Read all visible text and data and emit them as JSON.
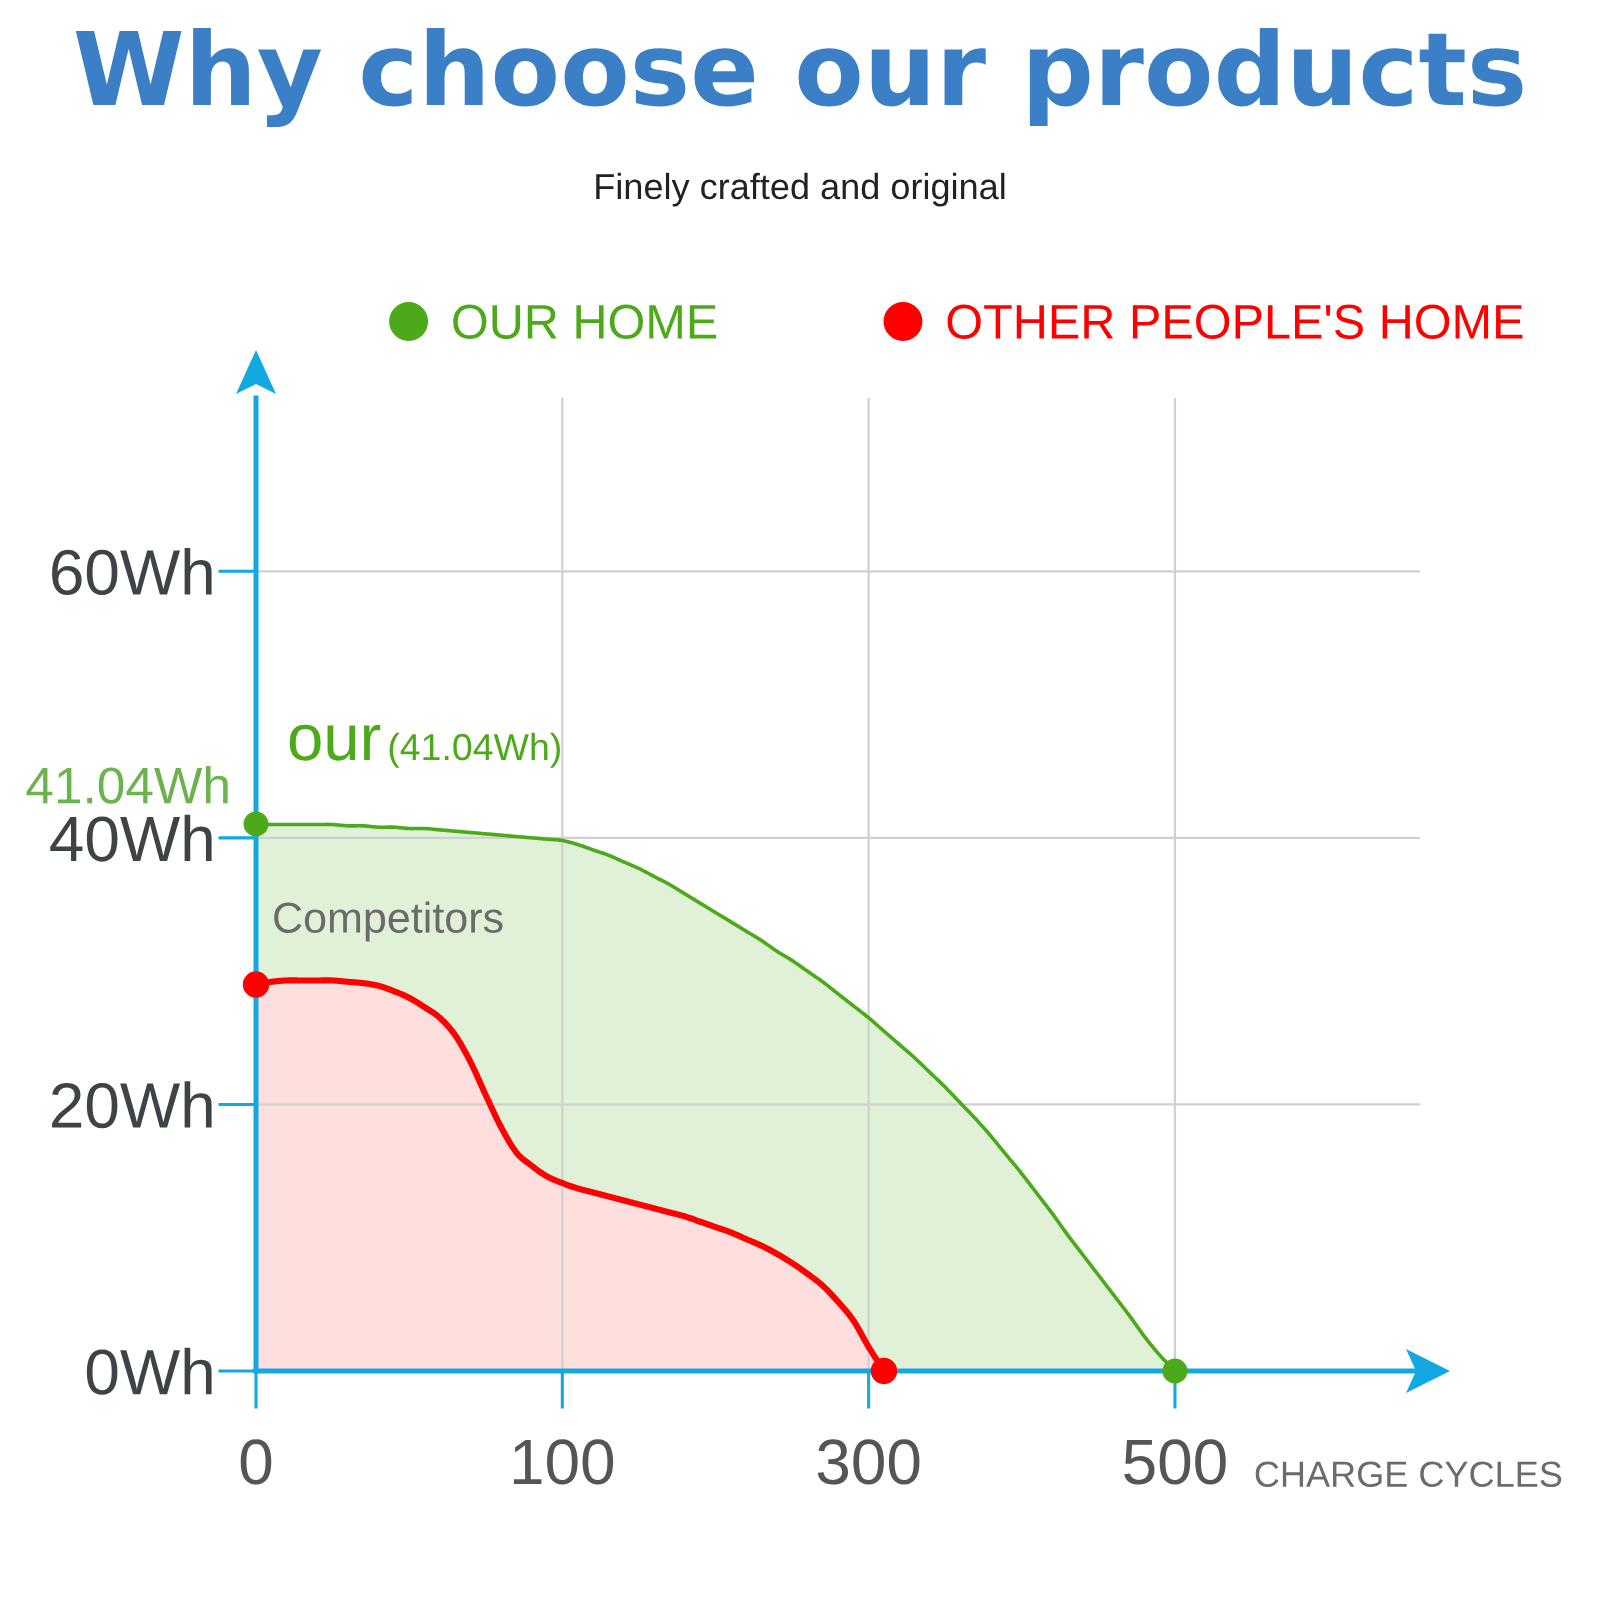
{
  "chart_data": {
    "type": "area",
    "title": "Why choose our products",
    "subtitle": "Finely crafted and original",
    "xlabel": "CHARGE CYCLES",
    "categories": [
      "0",
      null,
      null,
      null,
      null,
      null,
      null,
      null,
      null,
      null,
      null,
      null,
      null,
      null,
      null,
      null,
      null,
      null,
      null,
      null,
      "100",
      null,
      null,
      null,
      null,
      null,
      null,
      null,
      null,
      null,
      null,
      null,
      null,
      null,
      null,
      null,
      null,
      null,
      null,
      null,
      "300",
      null,
      null,
      null,
      null,
      null,
      null,
      null,
      null,
      null,
      null,
      null,
      null,
      null,
      null,
      null,
      null,
      null,
      null,
      null,
      "500",
      null,
      null,
      null,
      null,
      null,
      null,
      null,
      null,
      null,
      null,
      null,
      null,
      null,
      null,
      null,
      null
    ],
    "ylim": [
      0,
      73
    ],
    "yticks": [
      {
        "value": 0,
        "label": "0Wh"
      },
      {
        "value": 20,
        "label": "20Wh"
      },
      {
        "value": 40,
        "label": "40Wh"
      },
      {
        "value": 60,
        "label": "60Wh"
      }
    ],
    "grid": true,
    "legend": "top",
    "line_style": "solid",
    "series": [
      {
        "name": "OUR HOME",
        "color": "#4caa1a",
        "values": [
          41.04,
          41.0,
          41.0,
          41.0,
          41.0,
          41.0,
          40.9,
          40.9,
          40.8,
          40.8,
          40.7,
          40.7,
          40.6,
          40.5,
          40.4,
          40.3,
          40.2,
          40.1,
          40.0,
          39.9,
          39.8,
          39.5,
          39.1,
          38.7,
          38.2,
          37.7,
          37.1,
          36.5,
          35.8,
          35.1,
          34.4,
          33.7,
          33.0,
          32.3,
          31.5,
          30.8,
          30.0,
          29.2,
          28.3,
          27.4,
          26.5,
          25.5,
          24.5,
          23.5,
          22.4,
          21.3,
          20.1,
          18.9,
          17.6,
          16.2,
          14.8,
          13.3,
          11.8,
          10.2,
          8.7,
          7.2,
          5.7,
          4.2,
          2.6,
          1.2,
          0,
          null,
          null,
          null,
          null,
          null,
          null,
          null,
          null,
          null,
          null,
          null,
          null,
          null,
          null,
          null,
          null
        ]
      },
      {
        "name": "OTHER PEOPLE'S HOME",
        "color": "#ff0000",
        "values": [
          29.0,
          29.2,
          29.3,
          29.3,
          29.3,
          29.3,
          29.2,
          29.1,
          28.9,
          28.5,
          28.0,
          27.3,
          26.5,
          25.2,
          23.2,
          20.7,
          18.3,
          16.4,
          15.4,
          14.6,
          14.1,
          13.7,
          13.4,
          13.1,
          12.8,
          12.5,
          12.2,
          11.9,
          11.6,
          11.2,
          10.8,
          10.4,
          9.9,
          9.4,
          8.8,
          8.1,
          7.3,
          6.4,
          5.2,
          3.8,
          1.8,
          0,
          null,
          null,
          null,
          null,
          null,
          null,
          null,
          null,
          null,
          null,
          null,
          null,
          null,
          null,
          null,
          null,
          null,
          null,
          null,
          null,
          null,
          null,
          null,
          null,
          null,
          null,
          null,
          null,
          null,
          null,
          null,
          null,
          null,
          null,
          null
        ]
      }
    ],
    "annotations": [
      "41.04Wh",
      {
        "text": "our",
        "x": "0",
        "y": 41.04
      },
      "(41.04Wh)",
      {
        "text": "Competitors",
        "x": "0",
        "y": 29.0
      }
    ]
  }
}
